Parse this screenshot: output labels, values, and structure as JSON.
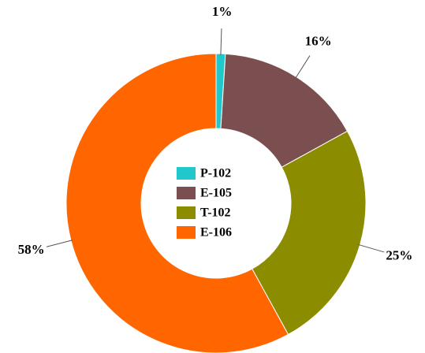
{
  "chart_data": {
    "type": "donut",
    "categories": [
      "P-102",
      "E-105",
      "T-102",
      "E-106"
    ],
    "values": [
      1,
      16,
      25,
      58
    ],
    "value_labels": [
      "1%",
      "16%",
      "25%",
      "58%"
    ],
    "colors": [
      "#20c8cc",
      "#7b4f4f",
      "#8c8c00",
      "#ff6600"
    ],
    "legend": "center"
  }
}
